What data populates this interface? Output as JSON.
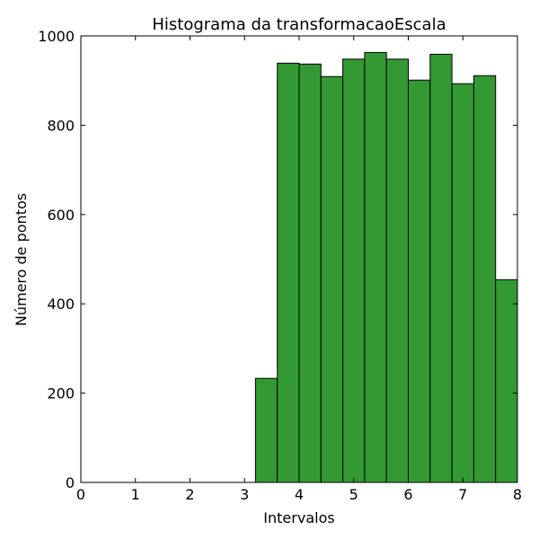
{
  "chart_data": {
    "type": "bar",
    "title": "Histograma da transformacaoEscala",
    "xlabel": "Intervalos",
    "ylabel": "Número de pontos",
    "xlim": [
      0,
      8
    ],
    "ylim": [
      0,
      1000
    ],
    "xticks": [
      "0",
      "1",
      "2",
      "3",
      "4",
      "5",
      "6",
      "7",
      "8"
    ],
    "yticks": [
      "0",
      "200",
      "400",
      "600",
      "800",
      "1000"
    ],
    "grid": false,
    "bar_color": "#339933",
    "edge_color": "#000000",
    "bins": [
      {
        "x0": 3.2,
        "x1": 3.6,
        "value": 233
      },
      {
        "x0": 3.6,
        "x1": 4.0,
        "value": 939
      },
      {
        "x0": 4.0,
        "x1": 4.4,
        "value": 937
      },
      {
        "x0": 4.4,
        "x1": 4.8,
        "value": 909
      },
      {
        "x0": 4.8,
        "x1": 5.2,
        "value": 948
      },
      {
        "x0": 5.2,
        "x1": 5.6,
        "value": 963
      },
      {
        "x0": 5.6,
        "x1": 6.0,
        "value": 948
      },
      {
        "x0": 6.0,
        "x1": 6.4,
        "value": 901
      },
      {
        "x0": 6.4,
        "x1": 6.8,
        "value": 959
      },
      {
        "x0": 6.8,
        "x1": 7.2,
        "value": 893
      },
      {
        "x0": 7.2,
        "x1": 7.6,
        "value": 911
      },
      {
        "x0": 7.6,
        "x1": 8.0,
        "value": 454
      }
    ]
  }
}
